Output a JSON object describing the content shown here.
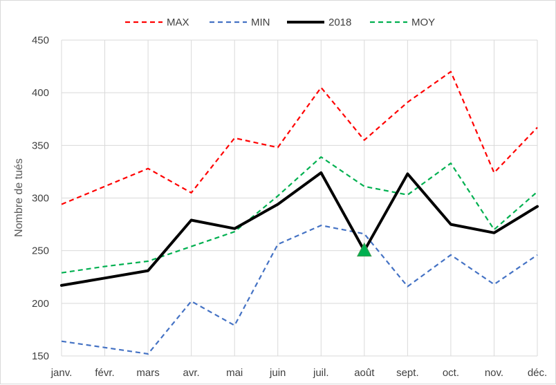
{
  "chart_data": {
    "type": "line",
    "categories": [
      "janv.",
      "févr.",
      "mars",
      "avr.",
      "mai",
      "juin",
      "juil.",
      "août",
      "sept.",
      "oct.",
      "nov.",
      "déc."
    ],
    "ylabel": "Nombre de tués",
    "xlabel": "",
    "ylim": [
      150,
      450
    ],
    "yticks": [
      150,
      200,
      250,
      300,
      350,
      400,
      450
    ],
    "grid": "on",
    "legend_position": "top",
    "series": [
      {
        "name": "MAX",
        "color": "#ff0000",
        "style": "dashed",
        "values": [
          294,
          311,
          328,
          305,
          357,
          348,
          405,
          355,
          391,
          420,
          324,
          367
        ]
      },
      {
        "name": "MIN",
        "color": "#4472c4",
        "style": "dashed",
        "values": [
          164,
          158,
          152,
          202,
          179,
          256,
          274,
          266,
          216,
          246,
          218,
          246
        ]
      },
      {
        "name": "2018",
        "color": "#000000",
        "style": "solid",
        "values": [
          217,
          224,
          231,
          279,
          271,
          294,
          324,
          250,
          323,
          275,
          267,
          292
        ]
      },
      {
        "name": "MOY",
        "color": "#00b050",
        "style": "dashed",
        "values": [
          229,
          235,
          240,
          254,
          268,
          302,
          339,
          311,
          303,
          333,
          270,
          306
        ]
      }
    ],
    "marker": {
      "category": "août",
      "value": 250,
      "shape": "triangle",
      "color": "#00b050"
    }
  }
}
